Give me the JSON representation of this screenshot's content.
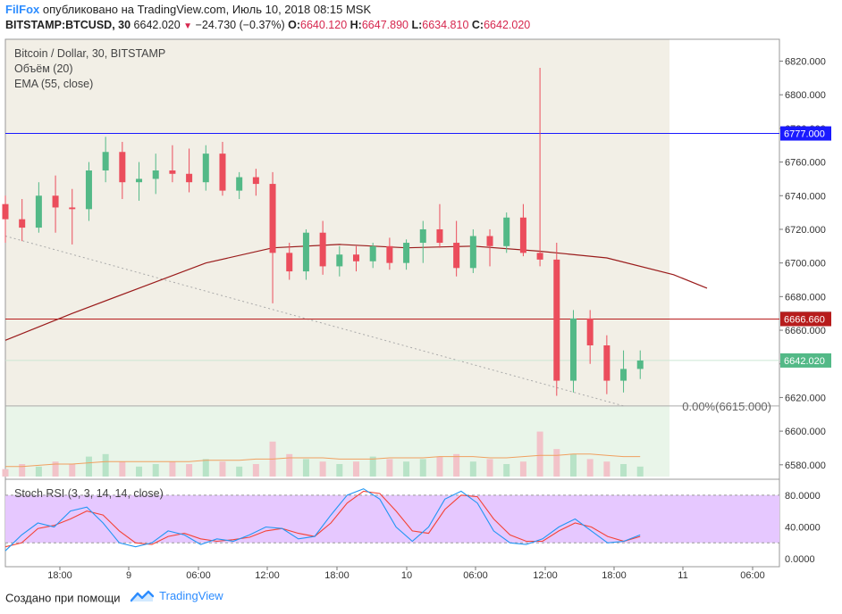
{
  "header": {
    "author": "FilFox",
    "published_text": "опубликовано на TradingView.com, Июль 10, 2018 08:15 MSK",
    "symbol": "BITSTAMP:BTCUSD, 30",
    "last": "6642.020",
    "change": "−24.730 (−0.37%)",
    "o_label": "O:",
    "o": "6640.120",
    "h_label": "H:",
    "h": "6647.890",
    "l_label": "L:",
    "l": "6634.810",
    "c_label": "C:",
    "c": "6642.020"
  },
  "legend": {
    "title": "Bitcoin / Dollar, 30, BITSTAMP",
    "volume": "Объём (20)",
    "ema": "EMA (55, close)",
    "stoch": "Stoch RSI (3, 3, 14, 14, close)"
  },
  "footer": {
    "created": "Создано при помощи",
    "brand": "TradingView"
  },
  "colors": {
    "up": "#53b987",
    "down": "#eb4d5c",
    "ema": "#9a1b1b",
    "blue_line": "#1a1aff",
    "red_line": "#b71c1c",
    "stoch_k": "#2196f3",
    "stoch_d": "#f44336",
    "stoch_band": "#e6c8ff",
    "bg_shade": "#f2efe6",
    "bg_green": "#e9f5e9"
  },
  "chart_data": {
    "type": "candlestick",
    "price_axis": {
      "min": 6573,
      "max": 6833,
      "ticks": [
        "6820.000",
        "6800.000",
        "6780.000",
        "6760.000",
        "6740.000",
        "6720.000",
        "6700.000",
        "6680.000",
        "6660.000",
        "6640.000",
        "6620.000",
        "6600.000",
        "6580.000"
      ]
    },
    "time_axis": {
      "labels": [
        "18:00",
        "9",
        "06:00",
        "12:00",
        "18:00",
        "10",
        "06:00",
        "12:00",
        "18:00",
        "11",
        "06:00"
      ],
      "start": "2018-07-08 09:00",
      "end": "2018-07-11 06:30",
      "bar_minutes": 30
    },
    "markers": [
      {
        "label": "6777.000",
        "value": 6777.0,
        "color": "#1a1aff"
      },
      {
        "label": "6666.750",
        "value": 6666.75,
        "color": "#555555"
      },
      {
        "label": "6666.660",
        "value": 6666.66,
        "color": "#b71c1c"
      },
      {
        "label": "6642.020",
        "value": 6642.02,
        "color": "#53b987"
      }
    ],
    "fib_label": "0.00%(6615.000)",
    "fib_value": 6615.0,
    "trendline": [
      [
        "2018-07-08 09:00",
        6716
      ],
      [
        "2018-07-10 16:30",
        6615
      ]
    ],
    "candles": [
      {
        "t": "2018-07-08 09:00",
        "o": 6735,
        "h": 6740,
        "l": 6712,
        "c": 6726
      },
      {
        "t": "2018-07-08 10:30",
        "o": 6726,
        "h": 6738,
        "l": 6713,
        "c": 6721
      },
      {
        "t": "2018-07-08 12:00",
        "o": 6721,
        "h": 6748,
        "l": 6718,
        "c": 6740
      },
      {
        "t": "2018-07-08 13:30",
        "o": 6740,
        "h": 6752,
        "l": 6718,
        "c": 6733
      },
      {
        "t": "2018-07-08 15:00",
        "o": 6733,
        "h": 6744,
        "l": 6711,
        "c": 6732
      },
      {
        "t": "2018-07-08 16:30",
        "o": 6732,
        "h": 6760,
        "l": 6725,
        "c": 6755
      },
      {
        "t": "2018-07-08 18:00",
        "o": 6755,
        "h": 6775,
        "l": 6748,
        "c": 6766
      },
      {
        "t": "2018-07-08 19:30",
        "o": 6766,
        "h": 6772,
        "l": 6738,
        "c": 6748
      },
      {
        "t": "2018-07-08 21:00",
        "o": 6748,
        "h": 6760,
        "l": 6737,
        "c": 6750
      },
      {
        "t": "2018-07-08 22:30",
        "o": 6750,
        "h": 6765,
        "l": 6741,
        "c": 6755
      },
      {
        "t": "2018-07-09 00:00",
        "o": 6755,
        "h": 6770,
        "l": 6748,
        "c": 6753
      },
      {
        "t": "2018-07-09 01:30",
        "o": 6753,
        "h": 6768,
        "l": 6742,
        "c": 6748
      },
      {
        "t": "2018-07-09 03:00",
        "o": 6748,
        "h": 6770,
        "l": 6743,
        "c": 6765
      },
      {
        "t": "2018-07-09 04:30",
        "o": 6765,
        "h": 6772,
        "l": 6740,
        "c": 6743
      },
      {
        "t": "2018-07-09 06:00",
        "o": 6743,
        "h": 6754,
        "l": 6738,
        "c": 6751
      },
      {
        "t": "2018-07-09 07:30",
        "o": 6751,
        "h": 6756,
        "l": 6740,
        "c": 6747
      },
      {
        "t": "2018-07-09 09:00",
        "o": 6747,
        "h": 6754,
        "l": 6676,
        "c": 6706
      },
      {
        "t": "2018-07-09 10:30",
        "o": 6706,
        "h": 6712,
        "l": 6690,
        "c": 6695
      },
      {
        "t": "2018-07-09 12:00",
        "o": 6695,
        "h": 6720,
        "l": 6690,
        "c": 6718
      },
      {
        "t": "2018-07-09 13:30",
        "o": 6718,
        "h": 6725,
        "l": 6693,
        "c": 6698
      },
      {
        "t": "2018-07-09 15:00",
        "o": 6698,
        "h": 6710,
        "l": 6692,
        "c": 6705
      },
      {
        "t": "2018-07-09 16:30",
        "o": 6705,
        "h": 6710,
        "l": 6695,
        "c": 6701
      },
      {
        "t": "2018-07-09 18:00",
        "o": 6701,
        "h": 6712,
        "l": 6697,
        "c": 6710
      },
      {
        "t": "2018-07-09 19:30",
        "o": 6710,
        "h": 6715,
        "l": 6696,
        "c": 6700
      },
      {
        "t": "2018-07-09 21:00",
        "o": 6700,
        "h": 6714,
        "l": 6696,
        "c": 6712
      },
      {
        "t": "2018-07-09 22:30",
        "o": 6712,
        "h": 6725,
        "l": 6700,
        "c": 6720
      },
      {
        "t": "2018-07-10 00:00",
        "o": 6720,
        "h": 6735,
        "l": 6709,
        "c": 6712
      },
      {
        "t": "2018-07-10 01:30",
        "o": 6712,
        "h": 6725,
        "l": 6692,
        "c": 6697
      },
      {
        "t": "2018-07-10 03:00",
        "o": 6697,
        "h": 6720,
        "l": 6694,
        "c": 6716
      },
      {
        "t": "2018-07-10 04:30",
        "o": 6716,
        "h": 6720,
        "l": 6698,
        "c": 6710
      },
      {
        "t": "2018-07-10 06:00",
        "o": 6710,
        "h": 6730,
        "l": 6706,
        "c": 6727
      },
      {
        "t": "2018-07-10 07:30",
        "o": 6727,
        "h": 6735,
        "l": 6704,
        "c": 6706
      },
      {
        "t": "2018-07-10 09:00",
        "o": 6706,
        "h": 6816,
        "l": 6698,
        "c": 6702
      },
      {
        "t": "2018-07-10 10:30",
        "o": 6702,
        "h": 6712,
        "l": 6621,
        "c": 6630
      },
      {
        "t": "2018-07-10 12:00",
        "o": 6630,
        "h": 6672,
        "l": 6623,
        "c": 6667
      },
      {
        "t": "2018-07-10 13:30",
        "o": 6667,
        "h": 6672,
        "l": 6640,
        "c": 6651
      },
      {
        "t": "2018-07-10 15:00",
        "o": 6651,
        "h": 6657,
        "l": 6622,
        "c": 6630
      },
      {
        "t": "2018-07-10 16:30",
        "o": 6630,
        "h": 6648,
        "l": 6623,
        "c": 6637
      },
      {
        "t": "2018-07-10 18:00",
        "o": 6637,
        "h": 6648,
        "l": 6631,
        "c": 6642
      }
    ],
    "ema": [
      [
        "2018-07-08 09:00",
        6654
      ],
      [
        "2018-07-08 15:00",
        6670
      ],
      [
        "2018-07-08 21:00",
        6685
      ],
      [
        "2018-07-09 03:00",
        6700
      ],
      [
        "2018-07-09 09:00",
        6709
      ],
      [
        "2018-07-09 15:00",
        6711
      ],
      [
        "2018-07-09 21:00",
        6709
      ],
      [
        "2018-07-10 03:00",
        6710
      ],
      [
        "2018-07-10 09:00",
        6707
      ],
      [
        "2018-07-10 15:00",
        6703
      ],
      [
        "2018-07-10 21:00",
        6693
      ],
      [
        "2018-07-11 00:00",
        6685
      ]
    ],
    "volume": [
      3,
      5,
      4,
      6,
      5,
      8,
      9,
      6,
      4,
      5,
      6,
      5,
      7,
      6,
      4,
      5,
      14,
      9,
      7,
      6,
      5,
      6,
      8,
      7,
      6,
      7,
      8,
      9,
      6,
      7,
      5,
      6,
      18,
      11,
      9,
      7,
      6,
      5,
      4
    ],
    "volume_ma": [
      4,
      4,
      4.5,
      5,
      5,
      5.5,
      6,
      6,
      6,
      6,
      6,
      6,
      6.5,
      6.5,
      6.5,
      7,
      7,
      7.5,
      7.5,
      7.5,
      7,
      7,
      7,
      7.5,
      7.5,
      7.5,
      8,
      8,
      8,
      7.5,
      7.5,
      8,
      8.5,
      8.5,
      9,
      9,
      8.5,
      8,
      8
    ],
    "stoch": {
      "ticks": [
        "80.0000",
        "40.0000",
        "0.0000"
      ],
      "upper": 80,
      "lower": 20,
      "k": [
        10,
        30,
        45,
        40,
        60,
        65,
        45,
        20,
        15,
        20,
        35,
        30,
        18,
        25,
        22,
        30,
        40,
        38,
        25,
        28,
        55,
        80,
        88,
        75,
        40,
        22,
        40,
        75,
        85,
        70,
        35,
        20,
        18,
        25,
        40,
        50,
        35,
        20,
        22,
        30
      ],
      "d": [
        15,
        20,
        38,
        42,
        50,
        60,
        55,
        35,
        20,
        18,
        28,
        32,
        25,
        22,
        24,
        27,
        35,
        38,
        32,
        28,
        45,
        70,
        85,
        82,
        60,
        35,
        32,
        62,
        80,
        78,
        50,
        30,
        22,
        22,
        35,
        45,
        40,
        28,
        22,
        28
      ]
    }
  }
}
